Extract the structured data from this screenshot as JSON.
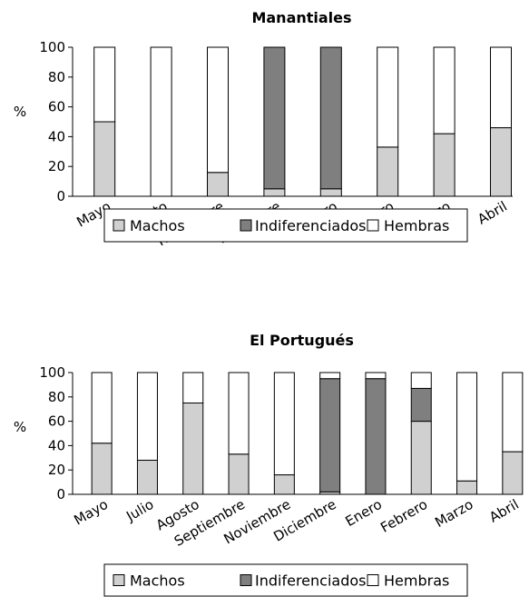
{
  "colors": {
    "machos": "#d0d0d0",
    "indiferenciados": "#7f7f7f",
    "hembras": "#ffffff",
    "stroke": "#000000"
  },
  "chart_data": [
    {
      "type": "bar",
      "stacked": true,
      "title": "Manantiales",
      "ylabel": "%",
      "ylim": [
        0,
        100
      ],
      "yticks": [
        0,
        20,
        40,
        60,
        80,
        100
      ],
      "categories": [
        "Mayo",
        "Agosto",
        "Noviembre",
        "Diciembre",
        "Enero",
        "Febrero",
        "Marzo",
        "Abril"
      ],
      "series": [
        {
          "name": "Machos",
          "values": [
            50,
            0,
            16,
            5,
            5,
            33,
            42,
            46
          ]
        },
        {
          "name": "Indiferenciados",
          "values": [
            0,
            0,
            0,
            95,
            95,
            0,
            0,
            0
          ]
        },
        {
          "name": "Hembras",
          "values": [
            50,
            100,
            84,
            0,
            0,
            67,
            58,
            54
          ]
        }
      ],
      "legend": {
        "position": "bottom",
        "labels": [
          "Machos",
          "Indiferenciados",
          "Hembras"
        ]
      }
    },
    {
      "type": "bar",
      "stacked": true,
      "title": "El Portugués",
      "ylabel": "%",
      "ylim": [
        0,
        100
      ],
      "yticks": [
        0,
        20,
        40,
        60,
        80,
        100
      ],
      "categories": [
        "Mayo",
        "Julio",
        "Agosto",
        "Septiembre",
        "Noviembre",
        "Diciembre",
        "Enero",
        "Febrero",
        "Marzo",
        "Abril"
      ],
      "series": [
        {
          "name": "Machos",
          "values": [
            42,
            28,
            75,
            33,
            16,
            2,
            0,
            60,
            11,
            35
          ]
        },
        {
          "name": "Indiferenciados",
          "values": [
            0,
            0,
            0,
            0,
            0,
            93,
            95,
            27,
            0,
            0
          ]
        },
        {
          "name": "Hembras",
          "values": [
            58,
            72,
            25,
            67,
            84,
            5,
            5,
            13,
            89,
            65
          ]
        }
      ],
      "legend": {
        "position": "bottom",
        "labels": [
          "Machos",
          "Indiferenciados",
          "Hembras"
        ]
      }
    }
  ]
}
